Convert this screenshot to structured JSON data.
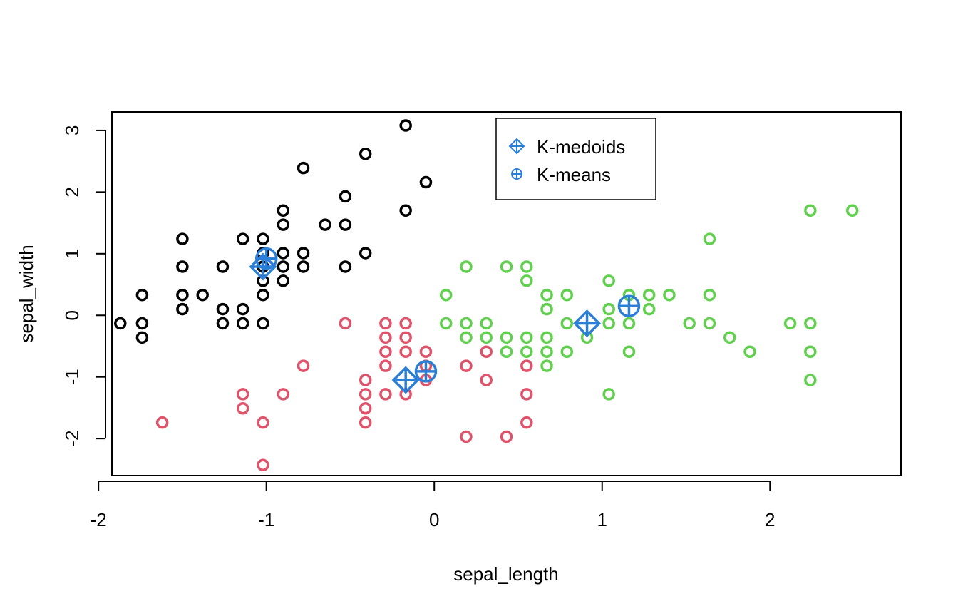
{
  "chart_data": {
    "type": "scatter",
    "title": "",
    "xlabel": "sepal_length",
    "ylabel": "sepal_width",
    "xlim": [
      -1.92,
      2.78
    ],
    "ylim": [
      -2.6,
      3.3
    ],
    "xticks": [
      -2,
      -1,
      0,
      1,
      2
    ],
    "yticks": [
      -2,
      -1,
      0,
      1,
      2,
      3
    ],
    "xtick_labels": [
      "-2",
      "-1",
      "0",
      "1",
      "2"
    ],
    "ytick_labels": [
      "-2",
      "-1",
      "0",
      "1",
      "2",
      "3"
    ],
    "grid": false,
    "legend": {
      "position": "top-center",
      "entries": [
        {
          "label": "K-medoids",
          "marker": "diamond-plus",
          "color": "#2C7FD6"
        },
        {
          "label": "K-means",
          "marker": "circle-plus",
          "color": "#2C7FD6"
        }
      ]
    },
    "series": [
      {
        "color": "#000000",
        "marker": "circle-open",
        "points": [
          [
            -0.17,
            3.08
          ],
          [
            -0.41,
            2.62
          ],
          [
            -0.78,
            2.39
          ],
          [
            -0.05,
            2.16
          ],
          [
            -0.53,
            1.93
          ],
          [
            -0.17,
            1.7
          ],
          [
            -0.9,
            1.7
          ],
          [
            -0.9,
            1.47
          ],
          [
            -0.65,
            1.47
          ],
          [
            -0.53,
            1.47
          ],
          [
            -1.5,
            1.24
          ],
          [
            -1.14,
            1.24
          ],
          [
            -1.02,
            1.24
          ],
          [
            -1.02,
            1.01
          ],
          [
            -0.9,
            1.01
          ],
          [
            -0.78,
            1.01
          ],
          [
            -0.41,
            1.01
          ],
          [
            -1.5,
            0.79
          ],
          [
            -1.26,
            0.79
          ],
          [
            -1.02,
            0.79
          ],
          [
            -0.9,
            0.79
          ],
          [
            -0.78,
            0.79
          ],
          [
            -0.53,
            0.79
          ],
          [
            -1.02,
            0.56
          ],
          [
            -0.9,
            0.56
          ],
          [
            -1.74,
            0.33
          ],
          [
            -1.5,
            0.33
          ],
          [
            -1.38,
            0.33
          ],
          [
            -1.02,
            0.33
          ],
          [
            -1.5,
            0.1
          ],
          [
            -1.26,
            0.1
          ],
          [
            -1.14,
            0.1
          ],
          [
            -1.87,
            -0.13
          ],
          [
            -1.74,
            -0.13
          ],
          [
            -1.26,
            -0.13
          ],
          [
            -1.14,
            -0.13
          ],
          [
            -1.02,
            -0.13
          ],
          [
            -1.74,
            -0.36
          ]
        ]
      },
      {
        "color": "#DF536B",
        "marker": "circle-open",
        "points": [
          [
            -0.53,
            -0.13
          ],
          [
            -0.29,
            -0.13
          ],
          [
            -0.17,
            -0.13
          ],
          [
            -0.29,
            -0.36
          ],
          [
            -0.17,
            -0.36
          ],
          [
            -0.29,
            -0.59
          ],
          [
            -0.17,
            -0.59
          ],
          [
            -0.05,
            -0.59
          ],
          [
            0.31,
            -0.59
          ],
          [
            -0.78,
            -0.82
          ],
          [
            -0.29,
            -0.82
          ],
          [
            -0.05,
            -0.82
          ],
          [
            0.19,
            -0.82
          ],
          [
            0.55,
            -0.82
          ],
          [
            -0.41,
            -1.05
          ],
          [
            -0.05,
            -1.05
          ],
          [
            0.31,
            -1.05
          ],
          [
            -1.14,
            -1.28
          ],
          [
            -0.9,
            -1.28
          ],
          [
            -0.41,
            -1.28
          ],
          [
            -0.29,
            -1.28
          ],
          [
            -0.17,
            -1.28
          ],
          [
            0.55,
            -1.28
          ],
          [
            -1.14,
            -1.51
          ],
          [
            -0.41,
            -1.51
          ],
          [
            -1.62,
            -1.74
          ],
          [
            -1.02,
            -1.74
          ],
          [
            -0.41,
            -1.74
          ],
          [
            0.55,
            -1.74
          ],
          [
            0.19,
            -1.97
          ],
          [
            0.43,
            -1.97
          ],
          [
            -1.02,
            -2.43
          ]
        ]
      },
      {
        "color": "#61D04F",
        "marker": "circle-open",
        "points": [
          [
            2.24,
            1.7
          ],
          [
            2.49,
            1.7
          ],
          [
            1.64,
            1.24
          ],
          [
            0.19,
            0.79
          ],
          [
            0.43,
            0.79
          ],
          [
            0.55,
            0.79
          ],
          [
            0.55,
            0.56
          ],
          [
            1.04,
            0.56
          ],
          [
            0.07,
            0.33
          ],
          [
            0.67,
            0.33
          ],
          [
            0.79,
            0.33
          ],
          [
            1.16,
            0.33
          ],
          [
            1.28,
            0.33
          ],
          [
            1.4,
            0.33
          ],
          [
            1.64,
            0.33
          ],
          [
            0.67,
            0.1
          ],
          [
            1.04,
            0.1
          ],
          [
            1.28,
            0.1
          ],
          [
            0.07,
            -0.13
          ],
          [
            0.19,
            -0.13
          ],
          [
            0.31,
            -0.13
          ],
          [
            0.79,
            -0.13
          ],
          [
            1.04,
            -0.13
          ],
          [
            1.16,
            -0.13
          ],
          [
            1.52,
            -0.13
          ],
          [
            1.64,
            -0.13
          ],
          [
            2.12,
            -0.13
          ],
          [
            2.24,
            -0.13
          ],
          [
            0.19,
            -0.36
          ],
          [
            0.31,
            -0.36
          ],
          [
            0.43,
            -0.36
          ],
          [
            0.55,
            -0.36
          ],
          [
            0.67,
            -0.36
          ],
          [
            0.91,
            -0.36
          ],
          [
            1.76,
            -0.36
          ],
          [
            0.43,
            -0.59
          ],
          [
            0.55,
            -0.59
          ],
          [
            0.67,
            -0.59
          ],
          [
            0.79,
            -0.59
          ],
          [
            1.16,
            -0.59
          ],
          [
            1.88,
            -0.59
          ],
          [
            2.24,
            -0.59
          ],
          [
            0.67,
            -0.82
          ],
          [
            2.24,
            -1.05
          ],
          [
            1.04,
            -1.28
          ]
        ]
      }
    ],
    "kmedoids": {
      "color": "#2C7FD6",
      "points": [
        [
          -1.02,
          0.79
        ],
        [
          -0.17,
          -1.05
        ],
        [
          0.91,
          -0.13
        ]
      ]
    },
    "kmeans": {
      "color": "#2C7FD6",
      "points": [
        [
          -1.0,
          0.92
        ],
        [
          -0.05,
          -0.91
        ],
        [
          1.16,
          0.15
        ]
      ]
    }
  }
}
